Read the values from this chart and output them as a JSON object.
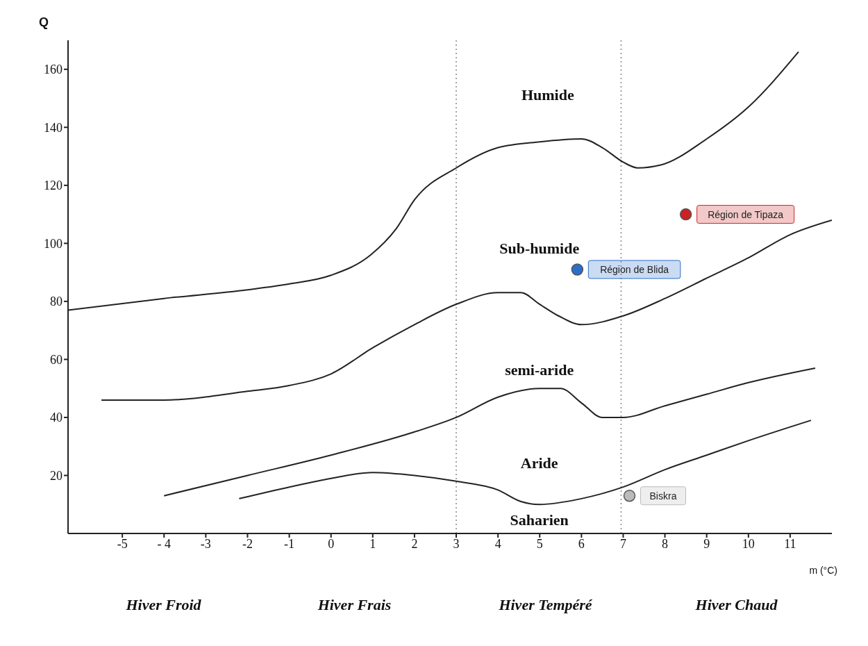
{
  "chart_data": {
    "type": "line",
    "xlabel": "m (°C)",
    "ylabel": "Q",
    "xlim": [
      -6.3,
      12
    ],
    "ylim": [
      0,
      170
    ],
    "xticks": [
      -5,
      {
        "value": -4,
        "label": "- 4"
      },
      -3,
      -2,
      -1,
      0,
      1,
      2,
      3,
      4,
      5,
      6,
      7,
      8,
      9,
      10,
      11
    ],
    "yticks": [
      20,
      40,
      60,
      80,
      100,
      120,
      140,
      160
    ],
    "grid": false,
    "legend": false,
    "line_style": "solid",
    "series": [
      {
        "color": "#222222",
        "x": [
          -6.3,
          -4,
          -2,
          -1,
          0,
          0.95,
          1.56,
          2,
          3,
          4,
          5,
          6,
          6.5,
          7,
          7.35,
          7.9,
          9,
          10,
          11.2
        ],
        "values": [
          77,
          81,
          84,
          86,
          89,
          96,
          105,
          115,
          126,
          133,
          135,
          136,
          133,
          128,
          126,
          127,
          136,
          147,
          166
        ]
      },
      {
        "color": "#222222",
        "x": [
          -5.5,
          -4,
          -2,
          -1,
          0,
          1,
          2,
          3,
          4,
          4.55,
          5,
          5.45,
          6,
          7,
          8,
          9,
          10,
          11,
          12
        ],
        "values": [
          46,
          46,
          49,
          51,
          55,
          64,
          72,
          79,
          83,
          83,
          79,
          75,
          72,
          75,
          81,
          88,
          95,
          103,
          108
        ]
      },
      {
        "color": "#222222",
        "x": [
          -4,
          -2,
          0,
          2,
          3,
          4,
          5,
          5.5,
          6,
          6.5,
          7,
          8,
          9,
          10,
          11.6
        ],
        "values": [
          13,
          20,
          27,
          35,
          40,
          47,
          50,
          50,
          45,
          40,
          40,
          44,
          48,
          52,
          57
        ]
      },
      {
        "color": "#222222",
        "x": [
          -2.2,
          -1,
          0,
          1,
          2,
          3,
          4,
          4.55,
          5,
          6,
          7,
          8,
          9,
          10,
          11.5
        ],
        "values": [
          12,
          16,
          19,
          21,
          20,
          18,
          15,
          11,
          10,
          12,
          16,
          22,
          27,
          32,
          39
        ]
      },
      {
        "type": "scatter",
        "marker": "circle",
        "name": "Région de Blida",
        "color": "#2a6fca",
        "x": [
          5.9
        ],
        "values": [
          91
        ]
      },
      {
        "type": "scatter",
        "marker": "circle",
        "name": "Région de Tipaza",
        "color": "#cc2222",
        "x": [
          8.5
        ],
        "values": [
          110
        ]
      },
      {
        "type": "scatter",
        "marker": "circle",
        "name": "Biskra",
        "color": "#bbbbbb",
        "x": [
          7.15
        ],
        "values": [
          13
        ]
      }
    ],
    "ref_lines": [
      {
        "axis": "x",
        "value": 3,
        "color": "#888888",
        "line_style": "dotted"
      },
      {
        "axis": "x",
        "value": 6.95,
        "color": "#888888",
        "line_style": "dotted"
      }
    ],
    "annotations": [
      "Humide",
      "Sub-humide",
      "semi-aride",
      "Aride",
      "Saharien",
      "Hiver Froid",
      "Hiver Frais",
      "Hiver Tempéré",
      "Hiver Chaud"
    ]
  }
}
